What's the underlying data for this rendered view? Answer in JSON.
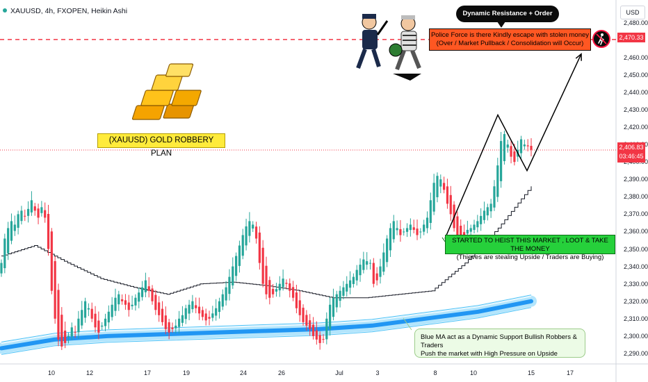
{
  "header": {
    "symbol": "XAUUSD, 4h, FXOPEN, Heikin Ashi",
    "currency": "USD"
  },
  "colors": {
    "bull": "#26a69a",
    "bear": "#f23645",
    "ma_black": "#131722",
    "ma_blue": "#2196f3",
    "ma_blue_glow": "#b3e5fc",
    "dashed_level": "#f23645"
  },
  "annotations": {
    "title": "(XAUUSD) GOLD ROBBERY PLAN",
    "dynamic_resistance": "Dynamic Resistance + Order Block",
    "police_line1": "Police Force is there Kindly escape with stolen money",
    "police_line2": "(Over / Market Pullback / Consolidation will Occur)",
    "started_line1": "STARTED TO HEIST THIS MARKET , LOOT & TAKE THE MONEY",
    "started_line2": "(Thieves are stealing Upside / Traders are Buying)",
    "blue_ma_line1": "Blue MA act as a Dynamic Support Bullish Robbers & Traders",
    "blue_ma_line2": "Push the market with High Pressure on Upside"
  },
  "icons": {
    "gold_bars": "gold-bars-illustration",
    "robbers": "police-and-thief-illustration",
    "stop": "stop-sign-icon"
  },
  "chart_data": {
    "type": "candlestick",
    "ylim": [
      2284,
      2493
    ],
    "y_ticks": [
      "2,290.00",
      "2,300.00",
      "2,310.00",
      "2,320.00",
      "2,330.00",
      "2,340.00",
      "2,350.00",
      "2,360.00",
      "2,370.00",
      "2,380.00",
      "2,390.00",
      "2,400.00",
      "2,410.00",
      "2,420.00",
      "2,430.00",
      "2,440.00",
      "2,450.00",
      "2,460.00",
      "2,480.00"
    ],
    "x_ticks": [
      "10",
      "12",
      "17",
      "19",
      "24",
      "26",
      "Jul",
      "3",
      "8",
      "10",
      "15",
      "17"
    ],
    "dashed_level": "2,470.33",
    "current_price": "2,406.83",
    "countdown": "03:46:45",
    "ha_closes": [
      2342,
      2356,
      2362,
      2366,
      2364,
      2370,
      2372,
      2369,
      2373,
      2378,
      2372,
      2368,
      2374,
      2368,
      2350,
      2326,
      2310,
      2298,
      2294,
      2296,
      2300,
      2305,
      2302,
      2310,
      2315,
      2320,
      2316,
      2310,
      2305,
      2302,
      2306,
      2310,
      2314,
      2318,
      2322,
      2324,
      2320,
      2318,
      2315,
      2318,
      2322,
      2325,
      2328,
      2332,
      2326,
      2320,
      2315,
      2312,
      2308,
      2304,
      2302,
      2304,
      2306,
      2310,
      2312,
      2316,
      2318,
      2320,
      2316,
      2313,
      2311,
      2309,
      2310,
      2313,
      2316,
      2320,
      2324,
      2328,
      2334,
      2340,
      2346,
      2352,
      2358,
      2363,
      2366,
      2364,
      2356,
      2342,
      2330,
      2324,
      2322,
      2324,
      2327,
      2330,
      2333,
      2330,
      2326,
      2322,
      2316,
      2312,
      2308,
      2306,
      2304,
      2300,
      2298,
      2296,
      2298,
      2310,
      2318,
      2322,
      2324,
      2326,
      2328,
      2330,
      2332,
      2334,
      2338,
      2341,
      2344,
      2343,
      2342,
      2330,
      2332,
      2340,
      2348,
      2356,
      2362,
      2366,
      2362,
      2358,
      2360,
      2362,
      2364,
      2361,
      2358,
      2360,
      2364,
      2368,
      2378,
      2388,
      2392,
      2390,
      2384,
      2376,
      2370,
      2362,
      2358,
      2356,
      2358,
      2361,
      2362,
      2364,
      2366,
      2369,
      2372,
      2374,
      2376,
      2386,
      2398,
      2412,
      2416,
      2410,
      2403,
      2400,
      2407,
      2413,
      2410,
      2409,
      2407
    ],
    "ha_open_seed": 2336,
    "black_ma": {
      "x_start": 0,
      "x_end": 160,
      "points": [
        [
          0,
          2346
        ],
        [
          10,
          2352
        ],
        [
          20,
          2342
        ],
        [
          30,
          2333
        ],
        [
          40,
          2328
        ],
        [
          50,
          2324
        ],
        [
          60,
          2330
        ],
        [
          70,
          2331
        ],
        [
          80,
          2329
        ],
        [
          90,
          2326
        ],
        [
          100,
          2322
        ],
        [
          110,
          2322
        ],
        [
          120,
          2324
        ],
        [
          130,
          2326
        ],
        [
          140,
          2342
        ],
        [
          150,
          2362
        ],
        [
          160,
          2386
        ]
      ]
    },
    "blue_ma": {
      "points": [
        [
          0,
          2293
        ],
        [
          15,
          2298
        ],
        [
          30,
          2300
        ],
        [
          45,
          2301
        ],
        [
          60,
          2302
        ],
        [
          75,
          2303
        ],
        [
          90,
          2304
        ],
        [
          105,
          2306
        ],
        [
          120,
          2310
        ],
        [
          135,
          2314
        ],
        [
          150,
          2320
        ]
      ]
    },
    "projection_path": [
      [
        2356,
        145
      ],
      [
        2427,
        151
      ],
      [
        2395,
        157
      ],
      [
        2466,
        164
      ]
    ]
  }
}
